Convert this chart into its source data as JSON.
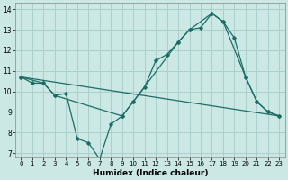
{
  "title": "",
  "xlabel": "Humidex (Indice chaleur)",
  "xlim": [
    -0.5,
    23.5
  ],
  "ylim": [
    6.8,
    14.3
  ],
  "yticks": [
    7,
    8,
    9,
    10,
    11,
    12,
    13,
    14
  ],
  "xticks": [
    0,
    1,
    2,
    3,
    4,
    5,
    6,
    7,
    8,
    9,
    10,
    11,
    12,
    13,
    14,
    15,
    16,
    17,
    18,
    19,
    20,
    21,
    22,
    23
  ],
  "bg_color": "#cce8e5",
  "grid_color": "#aacfcc",
  "line_color": "#1a6e65",
  "line1_x": [
    0,
    1,
    2,
    3,
    4,
    5,
    6,
    7,
    8,
    9,
    10,
    11,
    12,
    13,
    14,
    15,
    16,
    17,
    18,
    19,
    20,
    21,
    22,
    23
  ],
  "line1_y": [
    10.7,
    10.4,
    10.4,
    9.8,
    9.9,
    7.7,
    7.5,
    6.7,
    8.4,
    8.8,
    9.5,
    10.2,
    11.5,
    11.8,
    12.4,
    13.0,
    13.1,
    13.8,
    13.4,
    12.6,
    10.7,
    9.5,
    9.0,
    8.8
  ],
  "line2_x": [
    0,
    2,
    3,
    9,
    10,
    14,
    15,
    17,
    18,
    20,
    21,
    22,
    23
  ],
  "line2_y": [
    10.7,
    10.4,
    9.8,
    8.8,
    9.5,
    12.4,
    13.0,
    13.8,
    13.4,
    10.7,
    9.5,
    9.0,
    8.8
  ],
  "line3_x": [
    0,
    23
  ],
  "line3_y": [
    10.7,
    8.8
  ]
}
